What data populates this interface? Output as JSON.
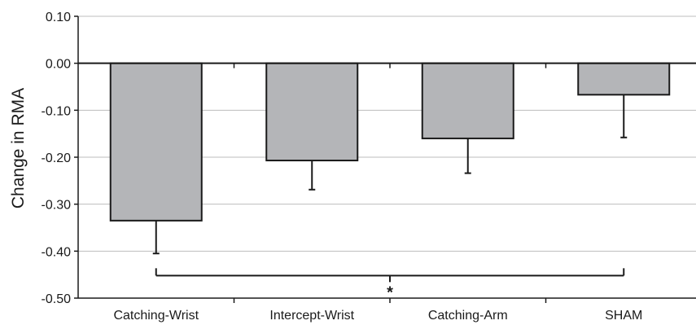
{
  "chart_data": {
    "type": "bar",
    "categories": [
      "Catching-Wrist",
      "Intercept-Wrist",
      "Catching-Arm",
      "SHAM"
    ],
    "values": [
      -0.335,
      -0.207,
      -0.16,
      -0.067
    ],
    "error_bars": [
      0.07,
      0.062,
      0.074,
      0.091
    ],
    "xlabel": "",
    "ylabel": "Change in RMA",
    "ylim": [
      -0.5,
      0.1
    ],
    "yticks": [
      0.1,
      0.0,
      -0.1,
      -0.2,
      -0.3,
      -0.4,
      -0.5
    ],
    "ytick_labels": [
      "0.10",
      "0.00",
      "-0.10",
      "-0.20",
      "-0.30",
      "-0.40",
      "-0.50"
    ],
    "grid": true,
    "significance": {
      "from_category": "Catching-Wrist",
      "to_category": "SHAM",
      "y": -0.452,
      "label": "*"
    },
    "colors": {
      "bar_fill": "#b4b5b8",
      "bar_stroke": "#1a1a1a",
      "grid": "#bdbdbd",
      "axis": "#1a1a1a"
    }
  }
}
